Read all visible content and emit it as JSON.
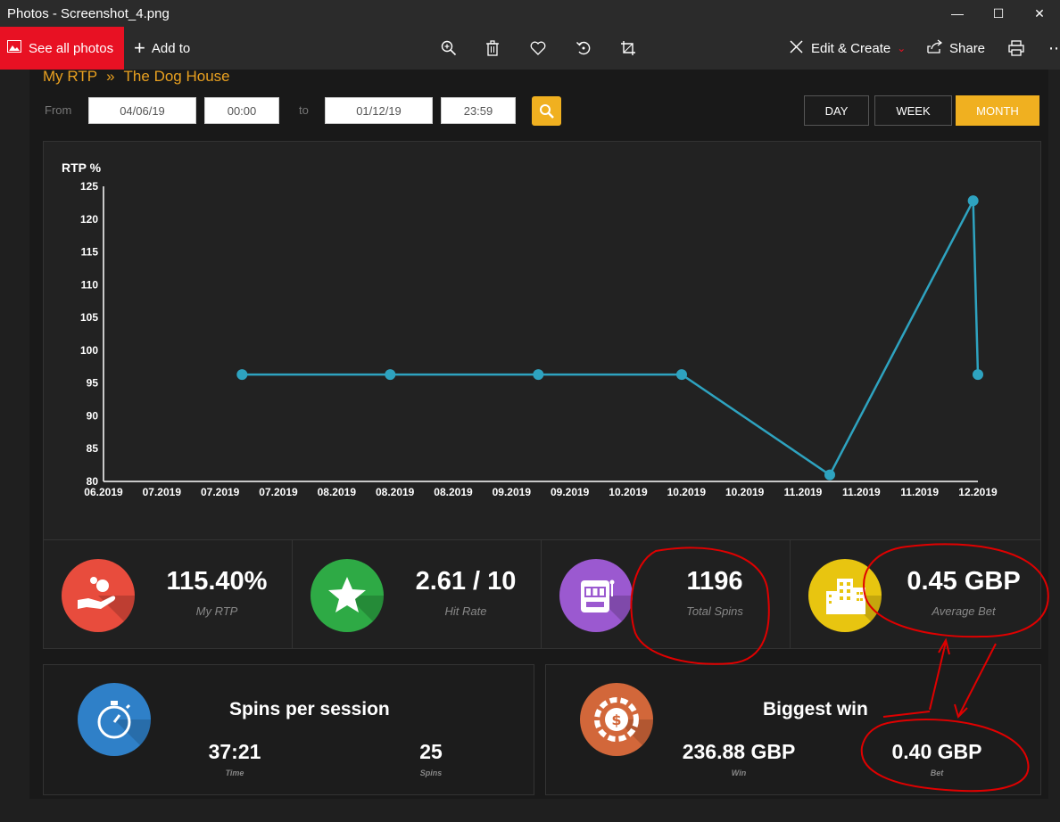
{
  "window": {
    "title": "Photos - Screenshot_4.png",
    "minimize_glyph": "—",
    "maximize_glyph": "☐",
    "close_glyph": "✕"
  },
  "toolbar": {
    "see_all_photos": "See all photos",
    "add_to": "Add to",
    "edit_create": "Edit & Create",
    "share": "Share",
    "more_glyph": "⋯"
  },
  "breadcrumb": {
    "root": "My RTP",
    "separator": "»",
    "current": "The Dog House"
  },
  "filters": {
    "from_label": "From",
    "from_date": "04/06/19",
    "from_time": "00:00",
    "to_label": "to",
    "to_date": "01/12/19",
    "to_time": "23:59",
    "range_buttons": [
      "DAY",
      "WEEK",
      "MONTH"
    ],
    "active_range": "MONTH"
  },
  "chart_data": {
    "type": "line",
    "ylabel": "RTP %",
    "ylim": [
      80,
      125
    ],
    "yticks": [
      80,
      85,
      90,
      95,
      100,
      105,
      110,
      115,
      120,
      125
    ],
    "xtick_labels": [
      "06.2019",
      "07.2019",
      "07.2019",
      "07.2019",
      "08.2019",
      "08.2019",
      "08.2019",
      "09.2019",
      "09.2019",
      "10.2019",
      "10.2019",
      "10.2019",
      "11.2019",
      "11.2019",
      "11.2019",
      "12.2019"
    ],
    "x_dates": [
      "2019-06-01",
      "2019-12-01"
    ],
    "points": [
      {
        "x": "2019-06-30",
        "y": 96.3
      },
      {
        "x": "2019-07-31",
        "y": 96.3
      },
      {
        "x": "2019-08-31",
        "y": 96.3
      },
      {
        "x": "2019-09-30",
        "y": 96.3
      },
      {
        "x": "2019-10-31",
        "y": 81.0
      },
      {
        "x": "2019-11-30",
        "y": 122.8
      },
      {
        "x": "2019-12-01",
        "y": 96.3
      }
    ],
    "line_color": "#2ea3c0",
    "grid": false
  },
  "stats": [
    {
      "value": "115.40%",
      "label": "My RTP",
      "icon": "hand-coin-icon",
      "color": "#e84c3d"
    },
    {
      "value": "2.61 / 10",
      "label": "Hit Rate",
      "icon": "star-icon",
      "color": "#2eaa45"
    },
    {
      "value": "1196",
      "label": "Total Spins",
      "icon": "slot-machine-icon",
      "color": "#9b59d0"
    },
    {
      "value": "0.45 GBP",
      "label": "Average Bet",
      "icon": "building-icon",
      "color": "#e8c510"
    }
  ],
  "session": {
    "title": "Spins per session",
    "time_value": "37:21",
    "time_label": "Time",
    "spins_value": "25",
    "spins_label": "Spins",
    "icon": "stopwatch-icon",
    "color": "#2f80c8"
  },
  "biggest_win": {
    "title": "Biggest win",
    "win_value": "236.88 GBP",
    "win_label": "Win",
    "bet_value": "0.40 GBP",
    "bet_label": "Bet",
    "icon": "casino-chip-icon",
    "color": "#d2673a"
  },
  "annotation_color": "#e00000"
}
